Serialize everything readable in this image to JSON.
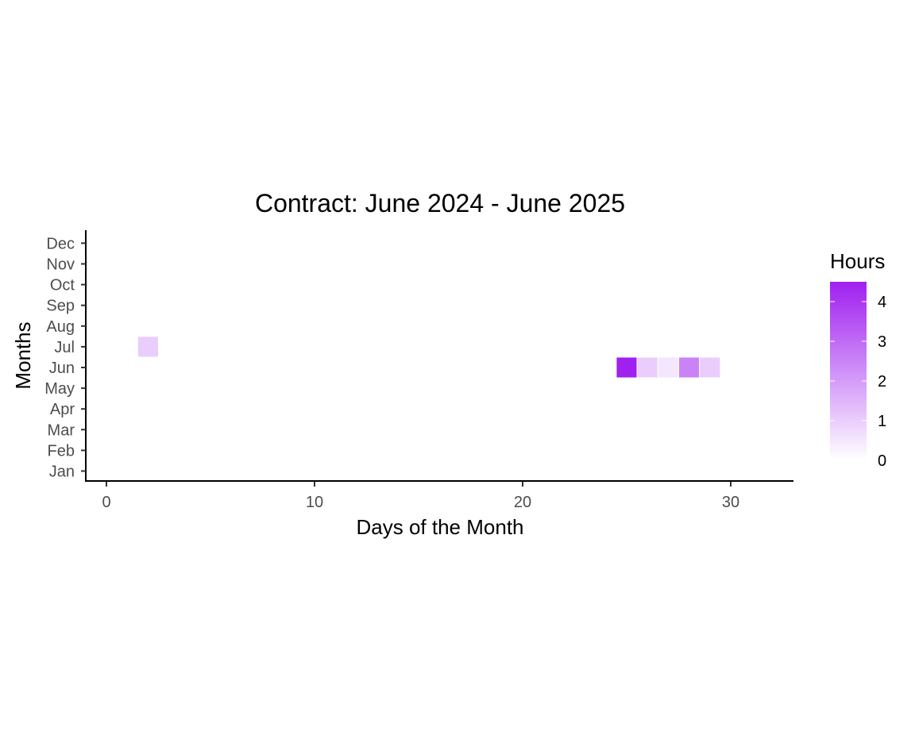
{
  "chart_data": {
    "type": "heatmap",
    "title": "Contract: June 2024 - June 2025",
    "xlabel": "Days of the Month",
    "ylabel": "Months",
    "xlim": [
      -1,
      33
    ],
    "x_ticks": [
      0,
      10,
      20,
      30
    ],
    "y_categories": [
      "Jan",
      "Feb",
      "Mar",
      "Apr",
      "May",
      "Jun",
      "Jul",
      "Aug",
      "Sep",
      "Oct",
      "Nov",
      "Dec"
    ],
    "cells": [
      {
        "month": "Jul",
        "day": 2,
        "hours": 1.0
      },
      {
        "month": "Jun",
        "day": 25,
        "hours": 4.5
      },
      {
        "month": "Jun",
        "day": 26,
        "hours": 1.0
      },
      {
        "month": "Jun",
        "day": 27,
        "hours": 0.5
      },
      {
        "month": "Jun",
        "day": 28,
        "hours": 2.5
      },
      {
        "month": "Jun",
        "day": 29,
        "hours": 1.0
      }
    ],
    "legend": {
      "title": "Hours",
      "ticks": [
        0,
        1,
        2,
        3,
        4
      ],
      "range": [
        0,
        4.5
      ],
      "position": "right",
      "low_color": "#ffffff",
      "high_color": "#a020f0"
    },
    "grid": false
  }
}
